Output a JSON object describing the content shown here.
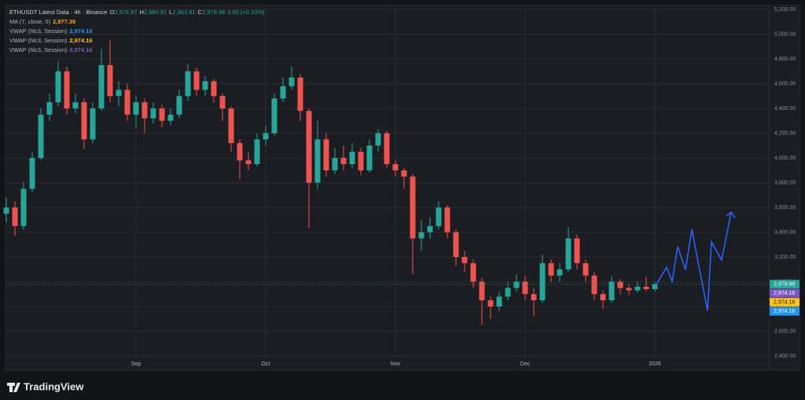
{
  "chart_data": {
    "type": "candlestick",
    "header": {
      "symbol": "ETHUSDT Latest Data · 4h · Binance",
      "ohlc": [
        {
          "key": "O",
          "value": "2,976.97"
        },
        {
          "key": "H",
          "value": "2,980.91"
        },
        {
          "key": "L",
          "value": "2,963.91"
        },
        {
          "key": "C",
          "value": "2,979.98"
        }
      ],
      "change": "3.00 (+0.10%)"
    },
    "indicators": [
      {
        "name": "MA (7, close, 0)",
        "value": "2,977.36",
        "color": "#f7a21b"
      },
      {
        "name": "VWAP (hlc3, Session)",
        "value": "2,974.16",
        "color": "#2196f3"
      },
      {
        "name": "VWAP (hlc3, Session)",
        "value": "2,974.16",
        "color": "#ffc41a"
      },
      {
        "name": "VWAP (hlc3, Session)",
        "value": "2,974.16",
        "color": "#7e57c2"
      }
    ],
    "categories": [
      null,
      null,
      null,
      null,
      null,
      null,
      null,
      null,
      null,
      null,
      null,
      null,
      null,
      null,
      null,
      "Sep",
      null,
      null,
      null,
      null,
      null,
      null,
      null,
      null,
      null,
      null,
      null,
      null,
      null,
      null,
      "Oct",
      null,
      null,
      null,
      null,
      null,
      null,
      null,
      null,
      null,
      null,
      null,
      null,
      null,
      null,
      "Nov",
      null,
      null,
      null,
      null,
      null,
      null,
      null,
      null,
      null,
      null,
      null,
      null,
      null,
      null,
      "Dec",
      null,
      null,
      null,
      null,
      null,
      null,
      null,
      null,
      null,
      null,
      null,
      null,
      null,
      null,
      "2026"
    ],
    "open": [
      3550,
      3600,
      3450,
      3750,
      4000,
      4350,
      4450,
      4700,
      4400,
      4450,
      4150,
      4400,
      4750,
      4500,
      4550,
      4350,
      4450,
      4320,
      4400,
      4300,
      4350,
      4500,
      4700,
      4550,
      4620,
      4500,
      4400,
      4120,
      3980,
      3950,
      4150,
      4200,
      4480,
      4580,
      4650,
      4380,
      3800,
      4150,
      3900,
      4000,
      3950,
      4050,
      3900,
      4100,
      4200,
      3950,
      3900,
      3850,
      3350,
      3400,
      3450,
      3600,
      3400,
      3200,
      3150,
      3000,
      2850,
      2800,
      2880,
      2950,
      3000,
      2900,
      2850,
      3150,
      3050,
      3100,
      3350,
      3150,
      3050,
      2900,
      2850,
      3000,
      2950,
      2930,
      2960,
      2940
    ],
    "high": [
      3680,
      3650,
      3800,
      4050,
      4400,
      4520,
      4780,
      4740,
      4520,
      4480,
      4450,
      4880,
      4950,
      4620,
      4600,
      4500,
      4480,
      4450,
      4430,
      4400,
      4550,
      4760,
      4730,
      4660,
      4640,
      4520,
      4420,
      4150,
      4050,
      4200,
      4260,
      4520,
      4650,
      4740,
      4680,
      4400,
      4300,
      4200,
      4080,
      4100,
      4120,
      4080,
      4150,
      4230,
      4220,
      3980,
      3920,
      3870,
      3500,
      3520,
      3650,
      3620,
      3420,
      3250,
      3180,
      3030,
      2880,
      2920,
      3000,
      3060,
      3050,
      2950,
      3220,
      3180,
      3150,
      3440,
      3380,
      3180,
      3080,
      2930,
      3050,
      3020,
      2980,
      3000,
      3040,
      3000
    ],
    "low": [
      3480,
      3370,
      3420,
      3720,
      3980,
      4300,
      4420,
      4350,
      4360,
      4070,
      4120,
      4380,
      4450,
      4420,
      4300,
      4250,
      4200,
      4280,
      4250,
      4260,
      4320,
      4460,
      4500,
      4500,
      4450,
      4300,
      4050,
      3830,
      3900,
      3930,
      4100,
      4180,
      4450,
      4550,
      4300,
      3430,
      3750,
      3850,
      3870,
      3900,
      3920,
      3860,
      3880,
      4050,
      3920,
      3850,
      3750,
      3060,
      3250,
      3350,
      3420,
      3350,
      3130,
      3080,
      2950,
      2650,
      2700,
      2760,
      2850,
      2920,
      2850,
      2720,
      2830,
      3000,
      3000,
      3080,
      3100,
      3000,
      2850,
      2780,
      2830,
      2900,
      2890,
      2910,
      2920,
      2920
    ],
    "close": [
      3600,
      3450,
      3750,
      4000,
      4350,
      4450,
      4700,
      4400,
      4450,
      4150,
      4400,
      4750,
      4500,
      4550,
      4350,
      4450,
      4320,
      4400,
      4300,
      4350,
      4500,
      4700,
      4550,
      4620,
      4500,
      4400,
      4120,
      3980,
      3950,
      4150,
      4200,
      4480,
      4580,
      4650,
      4380,
      3800,
      4150,
      3900,
      4000,
      3950,
      4050,
      3900,
      4100,
      4200,
      3950,
      3900,
      3850,
      3350,
      3400,
      3450,
      3600,
      3400,
      3200,
      3150,
      3000,
      2850,
      2800,
      2880,
      2950,
      3000,
      2900,
      2850,
      3150,
      3050,
      3100,
      3350,
      3150,
      3050,
      2900,
      2850,
      3000,
      2950,
      2930,
      2960,
      2940,
      2979.98
    ],
    "up_color": "#26a69a",
    "down_color": "#ef5350",
    "projection": {
      "values": [
        2980,
        3117,
        3003,
        3283,
        3098,
        3422,
        2768,
        3321,
        3175,
        3562
      ],
      "color": "#2962ff"
    },
    "price_labels": [
      {
        "value": 2979.98,
        "label": "2,979.98",
        "color": "#26a69a"
      },
      {
        "value": 2974.16,
        "label": "2,974.16",
        "color": "#7e57c2"
      },
      {
        "value": 2974.16,
        "label": "2,974.16",
        "color": "#ffc41a"
      },
      {
        "value": 2974.16,
        "label": "2,974.16",
        "color": "#2196f3"
      }
    ],
    "ylim": [
      2400,
      5200
    ],
    "yticks": [
      {
        "value": 2400,
        "label": "2,400.00"
      },
      {
        "value": 2600,
        "label": "2,600.00"
      },
      {
        "value": 2800,
        "label": "2,800.00"
      },
      {
        "value": 3000,
        "label": "3,000.00"
      },
      {
        "value": 3200,
        "label": "3,200.00"
      },
      {
        "value": 3400,
        "label": "3,400.00"
      },
      {
        "value": 3600,
        "label": "3,600.00"
      },
      {
        "value": 3800,
        "label": "3,800.00"
      },
      {
        "value": 4000,
        "label": "4,000.00"
      },
      {
        "value": 4200,
        "label": "4,200.00"
      },
      {
        "value": 4400,
        "label": "4,400.00"
      },
      {
        "value": 4600,
        "label": "4,600.00"
      },
      {
        "value": 4800,
        "label": "4,800.00"
      },
      {
        "value": 5000,
        "label": "5,000.00"
      },
      {
        "value": 5200,
        "label": "5,200.00"
      }
    ],
    "grid": true
  },
  "brand": "TradingView"
}
